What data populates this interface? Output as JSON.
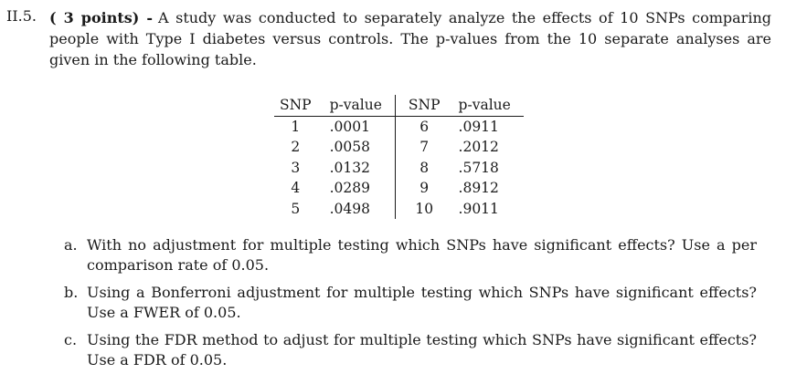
{
  "question": {
    "number": "II.5.",
    "points_label": "( 3 points) -",
    "text": "A study was conducted to separately analyze the effects of 10 SNPs comparing people with Type I diabetes versus controls. The p-values from the 10 separate analyses are given in the following table."
  },
  "table": {
    "headers": [
      "SNP",
      "p-value",
      "SNP",
      "p-value"
    ],
    "rows": [
      [
        "1",
        ".0001",
        "6",
        ".0911"
      ],
      [
        "2",
        ".0058",
        "7",
        ".2012"
      ],
      [
        "3",
        ".0132",
        "8",
        ".5718"
      ],
      [
        "4",
        ".0289",
        "9",
        ".8912"
      ],
      [
        "5",
        ".0498",
        "10",
        ".9011"
      ]
    ]
  },
  "parts": [
    {
      "marker": "a.",
      "text": "With no adjustment for multiple testing which SNPs have significant effects? Use a per comparison rate of 0.05."
    },
    {
      "marker": "b.",
      "text": "Using a Bonferroni adjustment for multiple testing which SNPs have significant effects? Use a FWER of 0.05."
    },
    {
      "marker": "c.",
      "text": "Using the FDR method to adjust for multiple testing which SNPs have significant effects? Use a FDR of 0.05."
    }
  ]
}
